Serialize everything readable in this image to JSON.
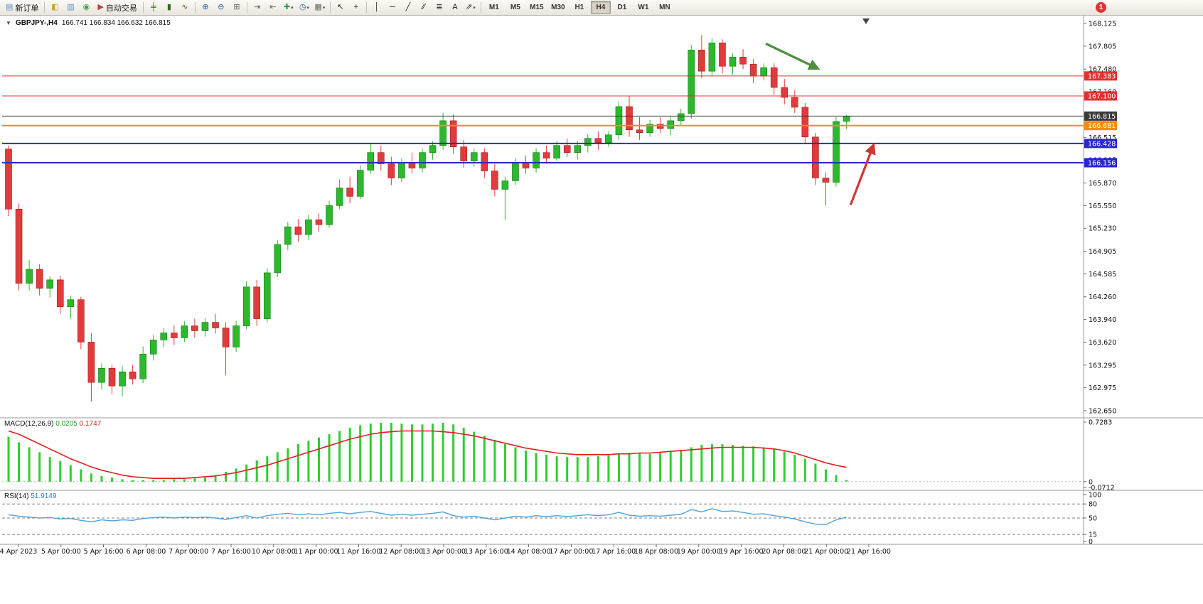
{
  "toolbar": {
    "notification_count": "1",
    "items": [
      {
        "type": "button",
        "name": "new-order-button",
        "glyph": "▤",
        "color": "#5b8fc9",
        "label": "新订单"
      },
      {
        "type": "sep"
      },
      {
        "type": "icon",
        "name": "market-watch-icon",
        "glyph": "◧",
        "color": "#c9a227"
      },
      {
        "type": "icon",
        "name": "data-window-icon",
        "glyph": "▥",
        "color": "#5b8fc9"
      },
      {
        "type": "icon",
        "name": "navigator-icon",
        "glyph": "◉",
        "color": "#3f9b4f"
      },
      {
        "type": "button",
        "name": "auto-trading-button",
        "glyph": "▶",
        "color": "#c43c3c",
        "label": "自动交易"
      },
      {
        "type": "sep"
      },
      {
        "type": "icon",
        "name": "bars-view-icon",
        "glyph": "╪",
        "color": "#33691e"
      },
      {
        "type": "icon",
        "name": "candles-view-icon",
        "glyph": "▮",
        "color": "#33691e"
      },
      {
        "type": "icon",
        "name": "line-view-icon",
        "glyph": "∿",
        "color": "#33691e"
      },
      {
        "type": "sep"
      },
      {
        "type": "icon",
        "name": "zoom-in-icon",
        "glyph": "⊕",
        "color": "#2a5fa5"
      },
      {
        "type": "icon",
        "name": "zoom-out-icon",
        "glyph": "⊖",
        "color": "#2a5fa5"
      },
      {
        "type": "icon",
        "name": "tile-windows-icon",
        "glyph": "⊞",
        "color": "#6b675f"
      },
      {
        "type": "sep"
      },
      {
        "type": "icon",
        "name": "auto-scroll-icon",
        "glyph": "⇥",
        "color": "#6b675f"
      },
      {
        "type": "icon",
        "name": "chart-shift-icon",
        "glyph": "⇤",
        "color": "#6b675f"
      },
      {
        "type": "dropdown",
        "name": "indicators-icon",
        "glyph": "✚",
        "color": "#2f9e44"
      },
      {
        "type": "dropdown",
        "name": "periods-icon",
        "glyph": "◷",
        "color": "#2a5fa5"
      },
      {
        "type": "dropdown",
        "name": "templates-icon",
        "glyph": "▦",
        "color": "#6b675f"
      },
      {
        "type": "sep"
      },
      {
        "type": "icon",
        "name": "cursor-icon",
        "glyph": "↖",
        "color": "#222222"
      },
      {
        "type": "icon",
        "name": "crosshair-icon",
        "glyph": "+",
        "color": "#222222"
      },
      {
        "type": "sep"
      },
      {
        "type": "icon",
        "name": "vertical-line-icon",
        "glyph": "│",
        "color": "#222222"
      },
      {
        "type": "icon",
        "name": "horizontal-line-icon",
        "glyph": "─",
        "color": "#222222"
      },
      {
        "type": "icon",
        "name": "trendline-icon",
        "glyph": "╱",
        "color": "#222222"
      },
      {
        "type": "icon",
        "name": "channel-icon",
        "glyph": "∕∕",
        "color": "#222222"
      },
      {
        "type": "icon",
        "name": "fibonacci-icon",
        "glyph": "≣",
        "color": "#222222"
      },
      {
        "type": "icon",
        "name": "text-icon",
        "glyph": "A",
        "color": "#222222"
      },
      {
        "type": "dropdown",
        "name": "arrows-icon",
        "glyph": "⇗",
        "color": "#222222"
      },
      {
        "type": "sep"
      },
      {
        "type": "tf",
        "name": "timeframe-m1-button",
        "label": "M1"
      },
      {
        "type": "tf",
        "name": "timeframe-m5-button",
        "label": "M5"
      },
      {
        "type": "tf",
        "name": "timeframe-m15-button",
        "label": "M15"
      },
      {
        "type": "tf",
        "name": "timeframe-m30-button",
        "label": "M30"
      },
      {
        "type": "tf",
        "name": "timeframe-h1-button",
        "label": "H1"
      },
      {
        "type": "tf",
        "name": "timeframe-h4-button",
        "label": "H4",
        "active": true
      },
      {
        "type": "tf",
        "name": "timeframe-d1-button",
        "label": "D1"
      },
      {
        "type": "tf",
        "name": "timeframe-w1-button",
        "label": "W1"
      },
      {
        "type": "tf",
        "name": "timeframe-mn-button",
        "label": "MN"
      }
    ]
  },
  "chart_data": {
    "type": "candlestick",
    "symbol": "GBPJPY-",
    "timeframe": "H4",
    "title_symbol": "GBPJPY-,H4",
    "title_ohlc": "166.741 166.834 166.632 166.815",
    "current": {
      "open": "166.741",
      "high": "166.834",
      "low": "166.632",
      "close": "166.815"
    },
    "colors": {
      "bull": "#2db82d",
      "bear": "#e23b3b"
    },
    "y_range": [
      162.65,
      168.125
    ],
    "y_ticks": [
      "168.125",
      "167.805",
      "167.480",
      "167.160",
      "166.835",
      "166.515",
      "166.195",
      "165.870",
      "165.550",
      "165.230",
      "164.905",
      "164.585",
      "164.260",
      "163.940",
      "163.620",
      "163.295",
      "162.975",
      "162.650"
    ],
    "x_labels": [
      "4 Apr 2023",
      "5 Apr 00:00",
      "5 Apr 16:00",
      "6 Apr 08:00",
      "7 Apr 00:00",
      "7 Apr 16:00",
      "10 Apr 08:00",
      "11 Apr 00:00",
      "11 Apr 16:00",
      "12 Apr 08:00",
      "13 Apr 00:00",
      "13 Apr 16:00",
      "14 Apr 08:00",
      "17 Apr 00:00",
      "17 Apr 16:00",
      "18 Apr 08:00",
      "19 Apr 00:00",
      "19 Apr 16:00",
      "20 Apr 08:00",
      "21 Apr 00:00",
      "21 Apr 16:00"
    ],
    "levels": [
      {
        "name": "resistance-line-1",
        "price": 167.383,
        "label": "167.383",
        "color": "#e03030",
        "width": 1
      },
      {
        "name": "resistance-line-2",
        "price": 167.1,
        "label": "167.100",
        "color": "#e03030",
        "width": 1
      },
      {
        "name": "current-price-line",
        "price": 166.815,
        "label": "166.815",
        "color": "#3a3a3a",
        "width": 1
      },
      {
        "name": "pivot-line-orange",
        "price": 166.681,
        "label": "166.681",
        "color": "#ff8a00",
        "width": 2
      },
      {
        "name": "support-line-1",
        "price": 166.428,
        "label": "166.428",
        "color": "#2828cc",
        "width": 2
      },
      {
        "name": "support-line-2",
        "price": 166.156,
        "label": "166.156",
        "color": "#2828cc",
        "width": 2
      }
    ],
    "arrows": [
      {
        "name": "downtrend-arrow",
        "color": "#4e8f3c",
        "from": {
          "bar": 73.2,
          "price": 167.84
        },
        "to": {
          "bar": 78.2,
          "price": 167.49
        }
      },
      {
        "name": "bounce-up-arrow",
        "color": "#d23535",
        "from": {
          "bar": 81.4,
          "price": 165.56
        },
        "to": {
          "bar": 83.6,
          "price": 166.4
        }
      }
    ],
    "candles": [
      [
        166.35,
        166.4,
        165.4,
        165.5
      ],
      [
        165.5,
        165.58,
        164.35,
        164.45
      ],
      [
        164.45,
        164.78,
        164.35,
        164.65
      ],
      [
        164.65,
        164.72,
        164.28,
        164.38
      ],
      [
        164.38,
        164.55,
        164.25,
        164.5
      ],
      [
        164.5,
        164.56,
        164.02,
        164.12
      ],
      [
        164.12,
        164.28,
        163.95,
        164.22
      ],
      [
        164.22,
        164.26,
        163.52,
        163.62
      ],
      [
        163.62,
        163.75,
        162.78,
        163.05
      ],
      [
        163.05,
        163.32,
        162.95,
        163.25
      ],
      [
        163.25,
        163.3,
        162.88,
        163.0
      ],
      [
        163.0,
        163.28,
        162.85,
        163.2
      ],
      [
        163.2,
        163.3,
        163.02,
        163.1
      ],
      [
        163.1,
        163.56,
        163.04,
        163.45
      ],
      [
        163.45,
        163.72,
        163.36,
        163.65
      ],
      [
        163.65,
        163.82,
        163.55,
        163.75
      ],
      [
        163.75,
        163.86,
        163.58,
        163.68
      ],
      [
        163.68,
        163.92,
        163.62,
        163.85
      ],
      [
        163.85,
        163.95,
        163.68,
        163.78
      ],
      [
        163.78,
        163.96,
        163.7,
        163.9
      ],
      [
        163.9,
        164.02,
        163.74,
        163.82
      ],
      [
        163.82,
        163.9,
        163.15,
        163.55
      ],
      [
        163.55,
        163.92,
        163.48,
        163.85
      ],
      [
        163.85,
        164.48,
        163.8,
        164.4
      ],
      [
        164.4,
        164.5,
        163.85,
        163.95
      ],
      [
        163.95,
        164.66,
        163.9,
        164.6
      ],
      [
        164.6,
        165.06,
        164.54,
        165.0
      ],
      [
        165.0,
        165.32,
        164.92,
        165.25
      ],
      [
        165.25,
        165.36,
        165.04,
        165.14
      ],
      [
        165.14,
        165.42,
        165.06,
        165.35
      ],
      [
        165.35,
        165.44,
        165.18,
        165.28
      ],
      [
        165.28,
        165.62,
        165.24,
        165.55
      ],
      [
        165.55,
        165.92,
        165.5,
        165.8
      ],
      [
        165.8,
        165.96,
        165.58,
        165.68
      ],
      [
        165.68,
        166.12,
        165.64,
        166.05
      ],
      [
        166.05,
        166.42,
        166.0,
        166.3
      ],
      [
        166.3,
        166.4,
        166.04,
        166.14
      ],
      [
        166.14,
        166.24,
        165.84,
        165.94
      ],
      [
        165.94,
        166.22,
        165.88,
        166.15
      ],
      [
        166.15,
        166.3,
        166.0,
        166.08
      ],
      [
        166.08,
        166.36,
        166.02,
        166.3
      ],
      [
        166.3,
        166.46,
        166.2,
        166.4
      ],
      [
        166.4,
        166.86,
        166.34,
        166.75
      ],
      [
        166.75,
        166.84,
        166.28,
        166.38
      ],
      [
        166.38,
        166.48,
        166.08,
        166.18
      ],
      [
        166.18,
        166.36,
        166.1,
        166.3
      ],
      [
        166.3,
        166.36,
        165.94,
        166.04
      ],
      [
        166.04,
        166.14,
        165.68,
        165.78
      ],
      [
        165.78,
        165.96,
        165.35,
        165.9
      ],
      [
        165.9,
        166.22,
        165.84,
        166.15
      ],
      [
        166.15,
        166.26,
        166.0,
        166.08
      ],
      [
        166.08,
        166.36,
        166.02,
        166.3
      ],
      [
        166.3,
        166.4,
        166.14,
        166.22
      ],
      [
        166.22,
        166.46,
        166.18,
        166.4
      ],
      [
        166.4,
        166.5,
        166.24,
        166.3
      ],
      [
        166.3,
        166.46,
        166.2,
        166.4
      ],
      [
        166.4,
        166.56,
        166.3,
        166.5
      ],
      [
        166.5,
        166.6,
        166.34,
        166.44
      ],
      [
        166.44,
        166.6,
        166.38,
        166.55
      ],
      [
        166.55,
        167.02,
        166.48,
        166.95
      ],
      [
        166.95,
        167.1,
        166.52,
        166.62
      ],
      [
        166.62,
        166.8,
        166.48,
        166.58
      ],
      [
        166.58,
        166.76,
        166.52,
        166.7
      ],
      [
        166.7,
        166.8,
        166.58,
        166.64
      ],
      [
        166.64,
        166.82,
        166.54,
        166.75
      ],
      [
        166.75,
        166.92,
        166.68,
        166.85
      ],
      [
        166.85,
        167.82,
        166.78,
        167.75
      ],
      [
        167.75,
        167.96,
        167.35,
        167.45
      ],
      [
        167.45,
        167.92,
        167.38,
        167.85
      ],
      [
        167.85,
        167.9,
        167.42,
        167.52
      ],
      [
        167.52,
        167.7,
        167.4,
        167.65
      ],
      [
        167.65,
        167.76,
        167.48,
        167.55
      ],
      [
        167.55,
        167.62,
        167.28,
        167.38
      ],
      [
        167.38,
        167.56,
        167.32,
        167.5
      ],
      [
        167.5,
        167.56,
        167.12,
        167.22
      ],
      [
        167.22,
        167.34,
        166.98,
        167.08
      ],
      [
        167.08,
        167.18,
        166.86,
        166.94
      ],
      [
        166.94,
        167.0,
        166.42,
        166.52
      ],
      [
        166.52,
        166.58,
        165.84,
        165.94
      ],
      [
        165.94,
        166.02,
        165.55,
        165.88
      ],
      [
        165.88,
        166.8,
        165.82,
        166.74
      ],
      [
        166.741,
        166.834,
        166.632,
        166.815
      ]
    ],
    "indicators": {
      "macd": {
        "label": "MACD(12,26,9)",
        "value_main": "0.0205",
        "value_signal": "0.1747",
        "max": 0.7283,
        "min": -0.0712,
        "axis_labels": [
          "0.7283",
          "-0.0712",
          "0"
        ],
        "colors": {
          "histogram": "#32cd32",
          "signal": "#e02020"
        },
        "histogram": [
          0.55,
          0.48,
          0.42,
          0.36,
          0.3,
          0.25,
          0.2,
          0.15,
          0.1,
          0.07,
          0.05,
          0.03,
          0.02,
          0.02,
          0.02,
          0.02,
          0.03,
          0.03,
          0.04,
          0.05,
          0.08,
          0.12,
          0.16,
          0.21,
          0.26,
          0.31,
          0.36,
          0.41,
          0.46,
          0.5,
          0.54,
          0.58,
          0.62,
          0.66,
          0.69,
          0.71,
          0.72,
          0.72,
          0.71,
          0.7,
          0.7,
          0.71,
          0.72,
          0.7,
          0.66,
          0.61,
          0.56,
          0.51,
          0.46,
          0.42,
          0.38,
          0.35,
          0.33,
          0.31,
          0.3,
          0.3,
          0.3,
          0.31,
          0.32,
          0.34,
          0.35,
          0.35,
          0.34,
          0.35,
          0.37,
          0.39,
          0.42,
          0.45,
          0.46,
          0.46,
          0.45,
          0.44,
          0.43,
          0.42,
          0.4,
          0.37,
          0.33,
          0.28,
          0.22,
          0.15,
          0.08,
          0.0205
        ],
        "signal": [
          0.62,
          0.58,
          0.52,
          0.46,
          0.4,
          0.34,
          0.28,
          0.23,
          0.18,
          0.14,
          0.11,
          0.08,
          0.06,
          0.05,
          0.04,
          0.04,
          0.04,
          0.04,
          0.05,
          0.06,
          0.07,
          0.09,
          0.11,
          0.14,
          0.17,
          0.2,
          0.24,
          0.28,
          0.32,
          0.36,
          0.4,
          0.44,
          0.48,
          0.52,
          0.55,
          0.58,
          0.6,
          0.61,
          0.62,
          0.62,
          0.62,
          0.62,
          0.61,
          0.6,
          0.58,
          0.56,
          0.53,
          0.5,
          0.47,
          0.44,
          0.41,
          0.39,
          0.37,
          0.35,
          0.34,
          0.33,
          0.33,
          0.33,
          0.33,
          0.34,
          0.34,
          0.35,
          0.35,
          0.36,
          0.37,
          0.38,
          0.39,
          0.4,
          0.41,
          0.42,
          0.42,
          0.42,
          0.42,
          0.41,
          0.4,
          0.38,
          0.35,
          0.31,
          0.27,
          0.23,
          0.2,
          0.1747
        ]
      },
      "rsi": {
        "label": "RSI(14)",
        "value": "51.9149",
        "color": "#4da3dd",
        "axis": [
          "100",
          "80",
          "50",
          "15",
          "0"
        ],
        "levels": [
          80,
          50,
          15
        ],
        "values": [
          57,
          54,
          52,
          50,
          51,
          48,
          49,
          45,
          42,
          46,
          44,
          46,
          45,
          49,
          51,
          52,
          50,
          52,
          51,
          52,
          50,
          47,
          51,
          55,
          50,
          55,
          58,
          60,
          57,
          59,
          57,
          60,
          62,
          59,
          62,
          64,
          60,
          56,
          58,
          56,
          58,
          60,
          63,
          55,
          52,
          54,
          50,
          46,
          50,
          54,
          52,
          55,
          53,
          55,
          53,
          55,
          57,
          55,
          57,
          62,
          56,
          54,
          55,
          54,
          56,
          58,
          68,
          63,
          70,
          64,
          65,
          62,
          58,
          59,
          55,
          52,
          48,
          42,
          37,
          36,
          46,
          51.9149
        ]
      }
    }
  }
}
